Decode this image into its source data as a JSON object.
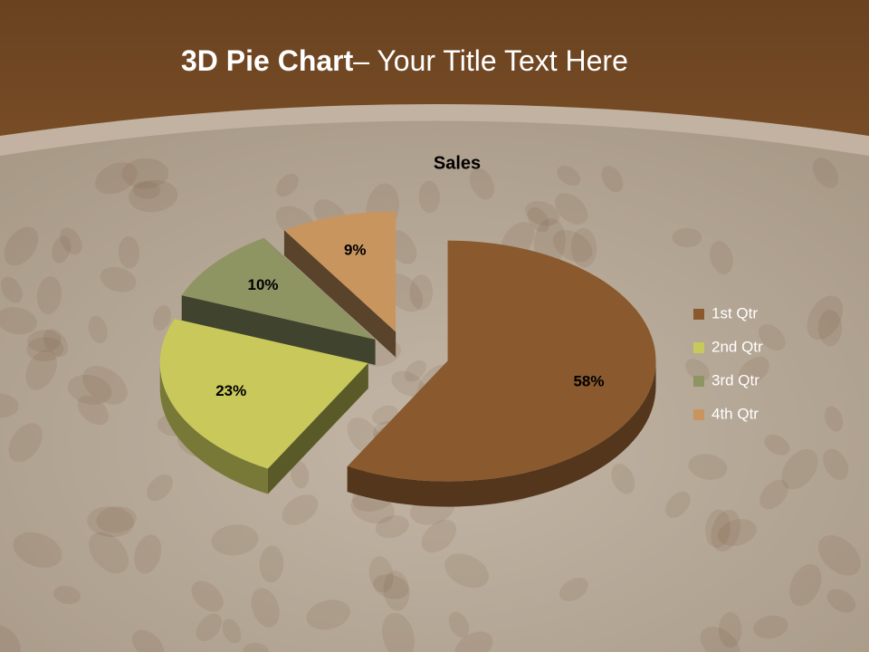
{
  "slide_title": {
    "bold": "3D Pie Chart",
    "rest": "– Your Title Text Here"
  },
  "chart_data": {
    "type": "pie",
    "title": "Sales",
    "categories": [
      "1st Qtr",
      "2nd Qtr",
      "3rd Qtr",
      "4th Qtr"
    ],
    "values": [
      58,
      23,
      10,
      9
    ],
    "value_labels": [
      "58%",
      "23%",
      "10%",
      "9%"
    ],
    "colors": [
      "#8a5a2e",
      "#c9c95b",
      "#8f9463",
      "#c9955f"
    ],
    "legend": "right"
  }
}
